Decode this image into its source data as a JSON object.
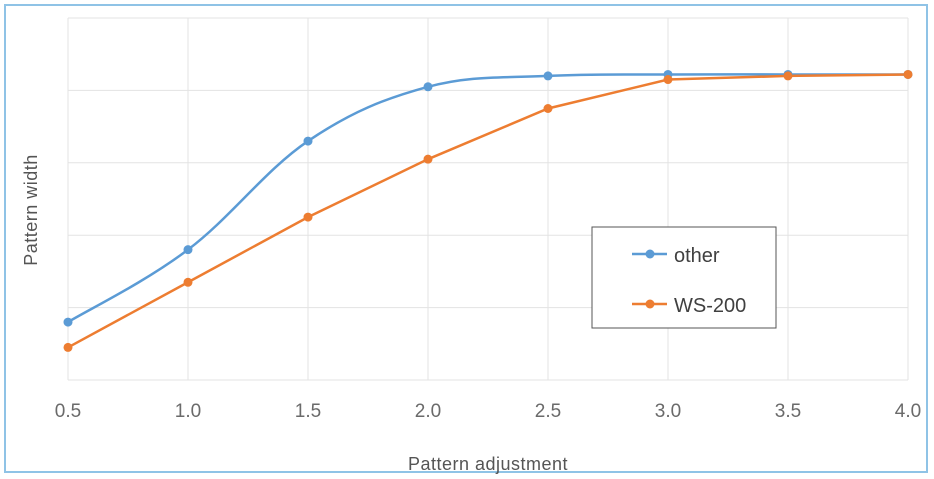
{
  "chart_data": {
    "type": "line",
    "xlabel": "Pattern adjustment",
    "ylabel": "Pattern width",
    "xlim": [
      0.5,
      4.0
    ],
    "ylim": [
      0,
      5
    ],
    "y_tick_labels_shown": false,
    "grid": true,
    "legend_position": "right",
    "x_ticks": [
      "0.5",
      "1.0",
      "1.5",
      "2.0",
      "2.5",
      "3.0",
      "3.5",
      "4.0"
    ],
    "series": [
      {
        "name": "other",
        "color": "#5b9bd5",
        "smooth": true,
        "x": [
          0.5,
          1.0,
          1.5,
          2.0,
          2.5,
          3.0,
          3.5,
          4.0
        ],
        "y": [
          0.8,
          1.8,
          3.3,
          4.05,
          4.2,
          4.22,
          4.22,
          4.22
        ]
      },
      {
        "name": "WS-200",
        "color": "#ed7d31",
        "smooth": false,
        "x": [
          0.5,
          1.0,
          1.5,
          2.0,
          2.5,
          3.0,
          3.5,
          4.0
        ],
        "y": [
          0.45,
          1.35,
          2.25,
          3.05,
          3.75,
          4.15,
          4.2,
          4.22
        ]
      }
    ]
  }
}
